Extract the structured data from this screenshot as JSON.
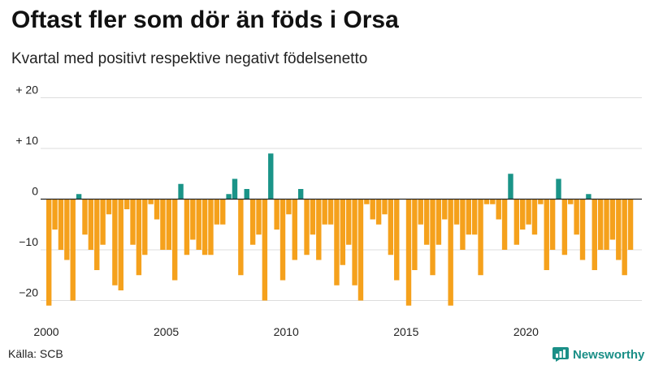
{
  "title": "Oftast fler som dör än föds i Orsa",
  "subtitle": "Kvartal med positivt respektive negativt födelsenetto",
  "source": "Källa: SCB",
  "brand": "Newsworthy",
  "colors": {
    "positive": "#1a9488",
    "negative": "#f5a11c",
    "grid": "#dddddd",
    "zero": "#222222",
    "brand": "#1a8f87"
  },
  "icons": {
    "brand_logo": "newsworthy-bar-chart-icon"
  },
  "chart_data": {
    "type": "bar",
    "title": "Oftast fler som dör än föds i Orsa",
    "subtitle": "Kvartal med positivt respektive negativt födelsenetto",
    "xlabel": "",
    "ylabel": "",
    "ylim": [
      -22,
      20
    ],
    "grid": true,
    "y_ticks": [
      {
        "value": 20,
        "label": "+ 20"
      },
      {
        "value": 10,
        "label": "+ 10"
      },
      {
        "value": 0,
        "label": "0"
      },
      {
        "value": -10,
        "label": "−10"
      },
      {
        "value": -20,
        "label": "−20"
      }
    ],
    "x_ticks": [
      "2000",
      "2005",
      "2010",
      "2015",
      "2020"
    ],
    "start_year": 2000,
    "period": "quarter",
    "values": [
      -21,
      -6,
      -10,
      -12,
      -20,
      1,
      -7,
      -10,
      -14,
      -9,
      -3,
      -17,
      -18,
      -2,
      -9,
      -15,
      -11,
      -1,
      -4,
      -10,
      -10,
      -16,
      3,
      -11,
      -8,
      -10,
      -11,
      -11,
      -5,
      -5,
      1,
      4,
      -15,
      2,
      -9,
      -7,
      -20,
      9,
      -6,
      -16,
      -3,
      -12,
      2,
      -11,
      -7,
      -12,
      -5,
      -5,
      -17,
      -13,
      -9,
      -17,
      -20,
      -1,
      -4,
      -5,
      -3,
      -11,
      -16,
      0,
      -21,
      -14,
      -5,
      -9,
      -15,
      -9,
      -4,
      -21,
      -5,
      -10,
      -7,
      -7,
      -15,
      -1,
      -1,
      -4,
      -10,
      5,
      -9,
      -6,
      -5,
      -7,
      -1,
      -14,
      -10,
      4,
      -11,
      -1,
      -7,
      -12,
      1,
      -14,
      -10,
      -10,
      -8,
      -12,
      -15,
      -10
    ]
  }
}
